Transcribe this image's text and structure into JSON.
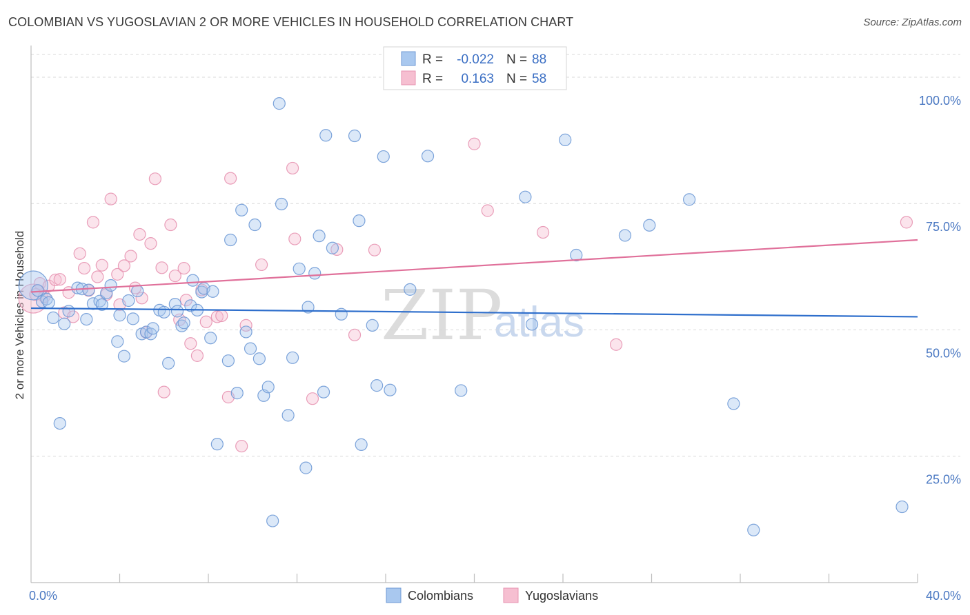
{
  "header": {
    "title": "COLOMBIAN VS YUGOSLAVIAN 2 OR MORE VEHICLES IN HOUSEHOLD CORRELATION CHART",
    "source": "Source: ZipAtlas.com"
  },
  "legend_box": {
    "rows": [
      {
        "r_label": "R =",
        "r_value": "-0.022",
        "n_label": "N =",
        "n_value": "88"
      },
      {
        "r_label": "R =",
        "r_value": "0.163",
        "n_label": "N =",
        "n_value": "58"
      }
    ]
  },
  "watermark": {
    "zip": "ZIP",
    "atlas": "atlas"
  },
  "colors": {
    "colombians_fill": "#a9c8ef",
    "colombians_stroke": "#6f9ad6",
    "colombians_line": "#2f6fcc",
    "yugoslavians_fill": "#f6bfd1",
    "yugoslavians_stroke": "#e793b1",
    "yugoslavians_line": "#e0709a",
    "tick_text": "#4a78c2",
    "grid": "#d8d8d8"
  },
  "chart_data": {
    "type": "scatter",
    "title": "COLOMBIAN VS YUGOSLAVIAN 2 OR MORE VEHICLES IN HOUSEHOLD CORRELATION CHART",
    "xlabel": "",
    "ylabel": "2 or more Vehicles in Household",
    "xlim": [
      0,
      40
    ],
    "ylim": [
      0,
      100
    ],
    "x_tick_labels": [
      "0.0%",
      "40.0%"
    ],
    "y_tick_labels": [
      "100.0%",
      "75.0%",
      "50.0%",
      "25.0%"
    ],
    "y_tick_values": [
      100,
      75,
      50,
      25
    ],
    "grid": true,
    "legend_position": "bottom",
    "series": [
      {
        "name": "Colombians",
        "r": -0.022,
        "n": 88,
        "trend": {
          "x": [
            0,
            40
          ],
          "y": [
            54.3,
            52.6
          ]
        },
        "points": [
          {
            "x": 0.1,
            "y": 58.8,
            "big": true
          },
          {
            "x": 0.3,
            "y": 57.8
          },
          {
            "x": 0.5,
            "y": 55.6
          },
          {
            "x": 0.7,
            "y": 56.1
          },
          {
            "x": 0.8,
            "y": 55.4
          },
          {
            "x": 1.0,
            "y": 52.4
          },
          {
            "x": 1.3,
            "y": 31.5
          },
          {
            "x": 1.5,
            "y": 51.2
          },
          {
            "x": 1.7,
            "y": 53.7
          },
          {
            "x": 2.1,
            "y": 58.3
          },
          {
            "x": 2.3,
            "y": 58.1
          },
          {
            "x": 2.5,
            "y": 52.1
          },
          {
            "x": 2.6,
            "y": 57.9
          },
          {
            "x": 2.8,
            "y": 55.2
          },
          {
            "x": 3.1,
            "y": 55.7
          },
          {
            "x": 3.2,
            "y": 55.0
          },
          {
            "x": 3.4,
            "y": 57.3
          },
          {
            "x": 3.6,
            "y": 58.8
          },
          {
            "x": 3.9,
            "y": 47.7
          },
          {
            "x": 4.0,
            "y": 52.9
          },
          {
            "x": 4.2,
            "y": 44.8
          },
          {
            "x": 4.4,
            "y": 55.8
          },
          {
            "x": 4.6,
            "y": 52.2
          },
          {
            "x": 4.8,
            "y": 57.7
          },
          {
            "x": 5.0,
            "y": 49.2
          },
          {
            "x": 5.2,
            "y": 49.6
          },
          {
            "x": 5.4,
            "y": 49.2
          },
          {
            "x": 5.5,
            "y": 50.3
          },
          {
            "x": 5.8,
            "y": 53.9
          },
          {
            "x": 6.0,
            "y": 53.5
          },
          {
            "x": 6.2,
            "y": 43.4
          },
          {
            "x": 6.5,
            "y": 55.1
          },
          {
            "x": 6.6,
            "y": 53.7
          },
          {
            "x": 6.8,
            "y": 50.8
          },
          {
            "x": 6.9,
            "y": 51.4
          },
          {
            "x": 7.2,
            "y": 54.8
          },
          {
            "x": 7.3,
            "y": 59.8
          },
          {
            "x": 7.5,
            "y": 53.9
          },
          {
            "x": 7.7,
            "y": 57.5
          },
          {
            "x": 7.8,
            "y": 58.2
          },
          {
            "x": 8.1,
            "y": 48.4
          },
          {
            "x": 8.2,
            "y": 57.6
          },
          {
            "x": 8.4,
            "y": 27.4
          },
          {
            "x": 8.9,
            "y": 43.9
          },
          {
            "x": 9.0,
            "y": 67.8
          },
          {
            "x": 9.3,
            "y": 37.5
          },
          {
            "x": 9.5,
            "y": 73.7
          },
          {
            "x": 9.7,
            "y": 49.6
          },
          {
            "x": 9.9,
            "y": 46.3
          },
          {
            "x": 10.1,
            "y": 70.8
          },
          {
            "x": 10.3,
            "y": 44.3
          },
          {
            "x": 10.5,
            "y": 37.0
          },
          {
            "x": 10.7,
            "y": 38.7
          },
          {
            "x": 10.9,
            "y": 12.2
          },
          {
            "x": 11.2,
            "y": 94.8
          },
          {
            "x": 11.3,
            "y": 74.9
          },
          {
            "x": 11.6,
            "y": 33.1
          },
          {
            "x": 11.8,
            "y": 44.5
          },
          {
            "x": 12.1,
            "y": 62.1
          },
          {
            "x": 12.4,
            "y": 22.7
          },
          {
            "x": 12.5,
            "y": 54.5
          },
          {
            "x": 12.8,
            "y": 61.2
          },
          {
            "x": 13.0,
            "y": 68.6
          },
          {
            "x": 13.2,
            "y": 37.7
          },
          {
            "x": 13.3,
            "y": 88.5
          },
          {
            "x": 13.6,
            "y": 66.2
          },
          {
            "x": 14.0,
            "y": 53.1
          },
          {
            "x": 14.6,
            "y": 88.4
          },
          {
            "x": 14.8,
            "y": 71.6
          },
          {
            "x": 14.9,
            "y": 27.3
          },
          {
            "x": 15.4,
            "y": 50.9
          },
          {
            "x": 15.6,
            "y": 39.0
          },
          {
            "x": 15.9,
            "y": 84.3
          },
          {
            "x": 16.2,
            "y": 38.1
          },
          {
            "x": 17.1,
            "y": 58.0
          },
          {
            "x": 17.9,
            "y": 84.4
          },
          {
            "x": 19.4,
            "y": 38.0
          },
          {
            "x": 22.3,
            "y": 76.3
          },
          {
            "x": 22.6,
            "y": 51.1
          },
          {
            "x": 24.1,
            "y": 87.6
          },
          {
            "x": 24.6,
            "y": 64.8
          },
          {
            "x": 26.8,
            "y": 68.7
          },
          {
            "x": 27.9,
            "y": 70.7
          },
          {
            "x": 29.7,
            "y": 75.8
          },
          {
            "x": 31.7,
            "y": 35.4
          },
          {
            "x": 32.6,
            "y": 10.4
          },
          {
            "x": 39.3,
            "y": 15.0
          }
        ]
      },
      {
        "name": "Yugoslavians",
        "r": 0.163,
        "n": 58,
        "trend": {
          "x": [
            0,
            40
          ],
          "y": [
            57.5,
            67.8
          ]
        },
        "points": [
          {
            "x": 0.1,
            "y": 56.2,
            "big": true
          },
          {
            "x": 0.2,
            "y": 57.0
          },
          {
            "x": 0.4,
            "y": 59.2
          },
          {
            "x": 0.6,
            "y": 56.6
          },
          {
            "x": 0.8,
            "y": 58.7
          },
          {
            "x": 1.1,
            "y": 59.9
          },
          {
            "x": 1.3,
            "y": 60.0
          },
          {
            "x": 1.5,
            "y": 53.4
          },
          {
            "x": 1.7,
            "y": 57.4
          },
          {
            "x": 1.9,
            "y": 52.6
          },
          {
            "x": 2.2,
            "y": 65.1
          },
          {
            "x": 2.4,
            "y": 62.2
          },
          {
            "x": 2.6,
            "y": 57.8
          },
          {
            "x": 2.8,
            "y": 71.3
          },
          {
            "x": 3.0,
            "y": 60.5
          },
          {
            "x": 3.2,
            "y": 62.8
          },
          {
            "x": 3.4,
            "y": 57.0
          },
          {
            "x": 3.6,
            "y": 75.9
          },
          {
            "x": 3.9,
            "y": 61.0
          },
          {
            "x": 4.0,
            "y": 55.0
          },
          {
            "x": 4.2,
            "y": 62.7
          },
          {
            "x": 4.5,
            "y": 64.6
          },
          {
            "x": 4.7,
            "y": 58.3
          },
          {
            "x": 4.9,
            "y": 68.9
          },
          {
            "x": 5.0,
            "y": 56.3
          },
          {
            "x": 5.2,
            "y": 49.5
          },
          {
            "x": 5.4,
            "y": 67.1
          },
          {
            "x": 5.6,
            "y": 79.9
          },
          {
            "x": 5.9,
            "y": 62.3
          },
          {
            "x": 6.0,
            "y": 37.7
          },
          {
            "x": 6.3,
            "y": 70.8
          },
          {
            "x": 6.5,
            "y": 60.7
          },
          {
            "x": 6.7,
            "y": 52.0
          },
          {
            "x": 6.9,
            "y": 62.2
          },
          {
            "x": 7.0,
            "y": 55.9
          },
          {
            "x": 7.2,
            "y": 47.3
          },
          {
            "x": 7.5,
            "y": 44.9
          },
          {
            "x": 7.7,
            "y": 57.9
          },
          {
            "x": 7.9,
            "y": 51.6
          },
          {
            "x": 8.4,
            "y": 52.6
          },
          {
            "x": 8.6,
            "y": 52.8
          },
          {
            "x": 8.9,
            "y": 36.7
          },
          {
            "x": 9.0,
            "y": 80.0
          },
          {
            "x": 9.5,
            "y": 27.0
          },
          {
            "x": 9.7,
            "y": 50.9
          },
          {
            "x": 10.4,
            "y": 62.9
          },
          {
            "x": 11.8,
            "y": 82.0
          },
          {
            "x": 11.9,
            "y": 68.0
          },
          {
            "x": 12.7,
            "y": 36.4
          },
          {
            "x": 13.8,
            "y": 65.9
          },
          {
            "x": 14.6,
            "y": 49.0
          },
          {
            "x": 15.5,
            "y": 65.8
          },
          {
            "x": 20.0,
            "y": 86.8
          },
          {
            "x": 20.6,
            "y": 73.6
          },
          {
            "x": 23.1,
            "y": 69.3
          },
          {
            "x": 26.4,
            "y": 47.1
          },
          {
            "x": 39.5,
            "y": 71.3
          }
        ]
      }
    ]
  }
}
